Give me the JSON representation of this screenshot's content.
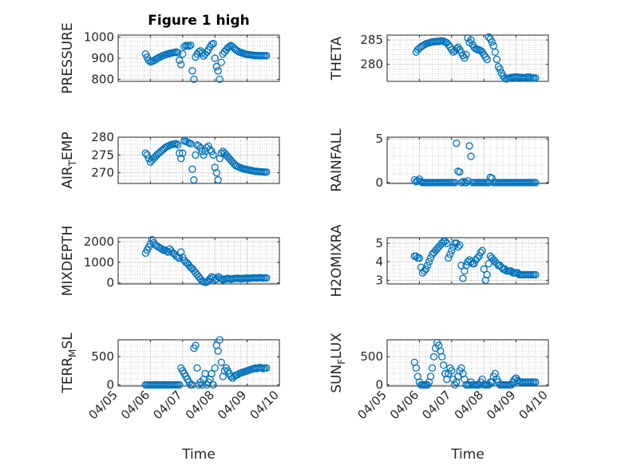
{
  "figure": {
    "title": "Figure 1 high"
  },
  "colors": {
    "marker": "#0072BD",
    "axes": "#262626",
    "grid": "#b0b0b0",
    "background": "#ffffff"
  },
  "x_axis": {
    "label": "Time",
    "ticks": [
      0,
      1,
      2,
      3,
      4,
      5
    ],
    "tick_labels": [
      "04/05",
      "04/06",
      "04/07",
      "04/08",
      "04/09",
      "04/10"
    ],
    "range": [
      0,
      5
    ]
  },
  "chart_data": [
    {
      "type": "scatter",
      "title": "Figure 1 high",
      "ylabel": "PRESSURE",
      "ylim": [
        790,
        1010
      ],
      "yticks": [
        800,
        900,
        1000
      ],
      "ytick_labels": [
        "800",
        "900",
        "1000"
      ],
      "grid": true,
      "minor_grid": true,
      "x": [
        0.85,
        0.9,
        0.95,
        1.0,
        1.05,
        1.1,
        1.15,
        1.2,
        1.25,
        1.3,
        1.35,
        1.4,
        1.45,
        1.5,
        1.55,
        1.6,
        1.65,
        1.7,
        1.75,
        1.8,
        1.85,
        1.9,
        1.95,
        2.0,
        2.05,
        2.1,
        2.15,
        2.2,
        2.25,
        2.3,
        2.35,
        2.4,
        2.45,
        2.5,
        2.55,
        2.6,
        2.65,
        2.7,
        2.75,
        2.8,
        2.85,
        2.9,
        2.95,
        3.0,
        3.05,
        3.1,
        3.15,
        3.2,
        3.25,
        3.3,
        3.35,
        3.4,
        3.45,
        3.5,
        3.55,
        3.6,
        3.65,
        3.7,
        3.75,
        3.8,
        3.85,
        3.9,
        3.95,
        4.0,
        4.05,
        4.1,
        4.15,
        4.2,
        4.25,
        4.3,
        4.35,
        4.4,
        4.45,
        4.5,
        4.55,
        4.6
      ],
      "y": [
        920,
        905,
        890,
        882,
        885,
        888,
        893,
        898,
        902,
        906,
        910,
        913,
        916,
        919,
        921,
        923,
        925,
        926,
        928,
        930,
        926,
        890,
        870,
        920,
        955,
        960,
        960,
        958,
        962,
        840,
        800,
        905,
        920,
        930,
        935,
        925,
        910,
        920,
        930,
        940,
        955,
        965,
        970,
        900,
        860,
        840,
        800,
        880,
        920,
        930,
        940,
        950,
        955,
        960,
        955,
        948,
        940,
        935,
        930,
        928,
        925,
        922,
        920,
        918,
        917,
        916,
        915,
        914,
        913,
        913,
        912,
        912,
        912,
        912,
        912,
        912
      ]
    },
    {
      "type": "scatter",
      "ylabel": "THETA",
      "ylim": [
        276.5,
        286
      ],
      "yticks": [
        280,
        285
      ],
      "ytick_labels": [
        "280",
        "285"
      ],
      "grid": true,
      "minor_grid": true,
      "x": [
        0.9,
        0.95,
        1.0,
        1.05,
        1.1,
        1.15,
        1.2,
        1.25,
        1.3,
        1.35,
        1.4,
        1.45,
        1.5,
        1.55,
        1.6,
        1.65,
        1.7,
        1.75,
        1.8,
        1.85,
        1.9,
        1.95,
        2.0,
        2.05,
        2.1,
        2.15,
        2.2,
        2.25,
        2.3,
        2.35,
        2.4,
        2.45,
        2.5,
        2.55,
        2.6,
        2.65,
        2.7,
        2.75,
        2.8,
        2.85,
        2.9,
        2.95,
        3.0,
        3.05,
        3.1,
        3.15,
        3.2,
        3.25,
        3.3,
        3.35,
        3.4,
        3.45,
        3.5,
        3.55,
        3.6,
        3.65,
        3.7,
        3.75,
        3.8,
        3.85,
        3.9,
        3.95,
        4.0,
        4.05,
        4.1,
        4.15,
        4.2,
        4.25,
        4.3,
        4.35,
        4.4,
        4.45,
        4.5,
        4.55,
        4.6
      ],
      "y": [
        282.5,
        283.0,
        283.3,
        283.6,
        283.8,
        284.0,
        284.2,
        284.3,
        284.4,
        284.5,
        284.6,
        284.6,
        284.7,
        284.7,
        284.7,
        284.8,
        284.8,
        284.7,
        284.6,
        284.4,
        284.0,
        283.6,
        283.0,
        282.5,
        282.8,
        283.2,
        283.5,
        283.0,
        282.4,
        281.8,
        281.3,
        282.0,
        285.4,
        284.5,
        285.0,
        284.0,
        283.5,
        283.2,
        283.0,
        283.0,
        282.8,
        282.5,
        282.0,
        281.5,
        281.0,
        285.6,
        285.2,
        284.6,
        283.8,
        282.5,
        281.0,
        279.5,
        279.0,
        278.2,
        277.6,
        277.2,
        277.0,
        277.1,
        277.2,
        277.3,
        277.3,
        277.4,
        277.4,
        277.4,
        277.3,
        277.3,
        277.3,
        277.2,
        277.3,
        277.4,
        277.4,
        277.3,
        277.2,
        277.2,
        277.2
      ]
    },
    {
      "type": "scatter",
      "ylabel": "AIR_TEMP",
      "ylim": [
        267,
        280
      ],
      "yticks": [
        270,
        275,
        280
      ],
      "ytick_labels": [
        "270",
        "275",
        "280"
      ],
      "grid": true,
      "minor_grid": true,
      "x": [
        0.85,
        0.9,
        0.95,
        1.0,
        1.05,
        1.1,
        1.15,
        1.2,
        1.25,
        1.3,
        1.35,
        1.4,
        1.45,
        1.5,
        1.55,
        1.6,
        1.65,
        1.7,
        1.75,
        1.8,
        1.85,
        1.9,
        1.95,
        2.0,
        2.05,
        2.1,
        2.15,
        2.2,
        2.25,
        2.3,
        2.35,
        2.4,
        2.45,
        2.5,
        2.55,
        2.6,
        2.65,
        2.7,
        2.75,
        2.8,
        2.85,
        2.9,
        2.95,
        3.0,
        3.05,
        3.1,
        3.15,
        3.2,
        3.25,
        3.3,
        3.35,
        3.4,
        3.45,
        3.5,
        3.55,
        3.6,
        3.65,
        3.7,
        3.75,
        3.8,
        3.85,
        3.9,
        3.95,
        4.0,
        4.05,
        4.1,
        4.15,
        4.2,
        4.25,
        4.3,
        4.35,
        4.4,
        4.45,
        4.5,
        4.55,
        4.6
      ],
      "y": [
        275.5,
        275.0,
        274.0,
        273.0,
        273.5,
        274.0,
        274.5,
        275.0,
        275.4,
        275.8,
        276.2,
        276.6,
        277.0,
        277.3,
        277.5,
        277.7,
        277.9,
        278.0,
        278.1,
        278.2,
        277.8,
        275.5,
        274.0,
        275.5,
        279.0,
        278.8,
        278.6,
        278.4,
        278.2,
        271.0,
        268.0,
        275.0,
        277.8,
        277.5,
        277.0,
        276.0,
        275.0,
        276.0,
        277.0,
        277.5,
        276.5,
        276.0,
        275.0,
        271.5,
        270.0,
        268.0,
        274.0,
        275.5,
        276.0,
        275.5,
        275.0,
        274.5,
        274.0,
        273.5,
        273.0,
        272.5,
        272.0,
        271.8,
        271.6,
        271.4,
        271.2,
        271.1,
        271.0,
        270.9,
        270.8,
        270.7,
        270.6,
        270.5,
        270.4,
        270.4,
        270.3,
        270.3,
        270.3,
        270.2,
        270.2,
        270.2
      ]
    },
    {
      "type": "scatter",
      "ylabel": "RAINFALL",
      "ylim": [
        -0.1,
        5.2
      ],
      "yticks": [
        0,
        5
      ],
      "ytick_labels": [
        "0",
        "5"
      ],
      "grid": true,
      "minor_grid": true,
      "x": [
        0.85,
        0.9,
        0.95,
        1.0,
        1.05,
        1.1,
        1.15,
        1.2,
        1.25,
        1.3,
        1.35,
        1.4,
        1.45,
        1.5,
        1.55,
        1.6,
        1.65,
        1.7,
        1.75,
        1.8,
        1.85,
        1.9,
        1.95,
        2.0,
        2.05,
        2.1,
        2.15,
        2.2,
        2.25,
        2.3,
        2.35,
        2.4,
        2.45,
        2.5,
        2.55,
        2.6,
        2.65,
        2.7,
        2.75,
        2.8,
        2.85,
        2.9,
        2.95,
        3.0,
        3.05,
        3.1,
        3.15,
        3.2,
        3.25,
        3.3,
        3.35,
        3.4,
        3.45,
        3.5,
        3.55,
        3.6,
        3.65,
        3.7,
        3.75,
        3.8,
        3.85,
        3.9,
        3.95,
        4.0,
        4.05,
        4.1,
        4.15,
        4.2,
        4.25,
        4.3,
        4.35,
        4.4,
        4.45,
        4.5,
        4.55,
        4.6
      ],
      "y": [
        0.3,
        0.1,
        0.2,
        0.4,
        0.1,
        0.0,
        0.0,
        0.0,
        0.0,
        0.0,
        0.0,
        0.0,
        0.0,
        0.0,
        0.0,
        0.0,
        0.0,
        0.0,
        0.0,
        0.0,
        0.0,
        0.0,
        0.0,
        0.0,
        0.0,
        0.0,
        4.5,
        1.3,
        1.2,
        0.0,
        0.1,
        0.0,
        0.0,
        0.2,
        4.2,
        3.0,
        0.0,
        0.0,
        0.0,
        0.0,
        0.0,
        0.0,
        0.0,
        0.0,
        0.0,
        0.0,
        0.0,
        0.6,
        0.5,
        0.0,
        0.0,
        0.0,
        0.0,
        0.0,
        0.0,
        0.0,
        0.0,
        0.0,
        0.0,
        0.0,
        0.0,
        0.0,
        0.0,
        0.0,
        0.0,
        0.0,
        0.0,
        0.0,
        0.0,
        0.0,
        0.0,
        0.0,
        0.0,
        0.0,
        0.0,
        0.0
      ]
    },
    {
      "type": "scatter",
      "ylabel": "MIXDEPTH",
      "ylim": [
        -50,
        2200
      ],
      "yticks": [
        0,
        1000,
        2000
      ],
      "ytick_labels": [
        "0",
        "1000",
        "2000"
      ],
      "grid": true,
      "minor_grid": true,
      "x": [
        0.85,
        0.9,
        0.95,
        1.0,
        1.05,
        1.1,
        1.15,
        1.2,
        1.25,
        1.3,
        1.35,
        1.4,
        1.45,
        1.5,
        1.55,
        1.6,
        1.65,
        1.7,
        1.75,
        1.8,
        1.85,
        1.9,
        1.95,
        2.0,
        2.05,
        2.1,
        2.15,
        2.2,
        2.25,
        2.3,
        2.35,
        2.4,
        2.45,
        2.5,
        2.55,
        2.6,
        2.65,
        2.7,
        2.75,
        2.8,
        2.85,
        2.9,
        2.95,
        3.0,
        3.05,
        3.1,
        3.15,
        3.2,
        3.25,
        3.3,
        3.35,
        3.4,
        3.45,
        3.5,
        3.55,
        3.6,
        3.65,
        3.7,
        3.75,
        3.8,
        3.85,
        3.9,
        3.95,
        4.0,
        4.05,
        4.1,
        4.15,
        4.2,
        4.25,
        4.3,
        4.35,
        4.4,
        4.45,
        4.5,
        4.55,
        4.6
      ],
      "y": [
        1450,
        1600,
        1750,
        1900,
        2100,
        1950,
        1850,
        1800,
        1750,
        1700,
        1650,
        1600,
        1600,
        1550,
        1500,
        1650,
        1550,
        1450,
        1400,
        1300,
        1250,
        1200,
        1500,
        1250,
        1100,
        1000,
        950,
        850,
        750,
        700,
        600,
        500,
        400,
        300,
        200,
        100,
        50,
        30,
        50,
        100,
        200,
        300,
        250,
        150,
        200,
        300,
        250,
        200,
        150,
        180,
        200,
        220,
        200,
        180,
        200,
        210,
        220,
        230,
        220,
        200,
        210,
        220,
        230,
        240,
        220,
        230,
        240,
        250,
        240,
        230,
        250,
        260,
        240,
        230,
        250,
        240
      ]
    },
    {
      "type": "scatter",
      "ylabel": "H2OMIXRA",
      "ylim": [
        2.8,
        5.3
      ],
      "yticks": [
        3,
        4,
        5
      ],
      "ytick_labels": [
        "3",
        "4",
        "5"
      ],
      "grid": true,
      "minor_grid": true,
      "x": [
        0.85,
        0.9,
        0.95,
        1.0,
        1.05,
        1.1,
        1.15,
        1.2,
        1.25,
        1.3,
        1.35,
        1.4,
        1.45,
        1.5,
        1.55,
        1.6,
        1.65,
        1.7,
        1.75,
        1.8,
        1.85,
        1.9,
        1.95,
        2.0,
        2.05,
        2.1,
        2.15,
        2.2,
        2.25,
        2.3,
        2.35,
        2.4,
        2.45,
        2.5,
        2.55,
        2.6,
        2.65,
        2.7,
        2.75,
        2.8,
        2.85,
        2.9,
        2.95,
        3.0,
        3.05,
        3.1,
        3.15,
        3.2,
        3.25,
        3.3,
        3.35,
        3.4,
        3.45,
        3.5,
        3.55,
        3.6,
        3.65,
        3.7,
        3.75,
        3.8,
        3.85,
        3.9,
        3.95,
        4.0,
        4.05,
        4.1,
        4.15,
        4.2,
        4.25,
        4.3,
        4.35,
        4.4,
        4.45,
        4.5,
        4.55,
        4.6
      ],
      "y": [
        4.3,
        4.3,
        4.2,
        4.2,
        3.7,
        3.4,
        3.5,
        3.6,
        3.8,
        4.0,
        4.2,
        4.4,
        4.5,
        4.6,
        4.7,
        4.8,
        4.9,
        5.0,
        5.1,
        5.1,
        5.0,
        4.2,
        4.4,
        4.6,
        4.8,
        5.0,
        5.0,
        4.8,
        4.9,
        3.8,
        3.1,
        3.5,
        3.8,
        4.0,
        4.1,
        4.0,
        3.9,
        3.9,
        4.1,
        4.2,
        4.3,
        4.5,
        4.6,
        3.6,
        3.0,
        3.3,
        3.9,
        4.3,
        4.2,
        4.1,
        4.0,
        3.9,
        3.8,
        3.8,
        3.7,
        3.6,
        3.6,
        3.5,
        3.5,
        3.5,
        3.5,
        3.4,
        3.4,
        3.4,
        3.4,
        3.3,
        3.3,
        3.3,
        3.3,
        3.3,
        3.3,
        3.3,
        3.3,
        3.3,
        3.3,
        3.3
      ]
    },
    {
      "type": "scatter",
      "ylabel": "TERR_MSL",
      "ylim": [
        -20,
        800
      ],
      "yticks": [
        0,
        500
      ],
      "ytick_labels": [
        "0",
        "500"
      ],
      "grid": true,
      "minor_grid": true,
      "x": [
        0.85,
        0.9,
        0.95,
        1.0,
        1.05,
        1.1,
        1.15,
        1.2,
        1.25,
        1.3,
        1.35,
        1.4,
        1.45,
        1.5,
        1.55,
        1.6,
        1.65,
        1.7,
        1.75,
        1.8,
        1.85,
        1.9,
        1.95,
        2.0,
        2.05,
        2.1,
        2.15,
        2.2,
        2.25,
        2.3,
        2.35,
        2.4,
        2.45,
        2.5,
        2.55,
        2.6,
        2.65,
        2.7,
        2.75,
        2.8,
        2.85,
        2.9,
        2.95,
        3.0,
        3.05,
        3.1,
        3.15,
        3.2,
        3.25,
        3.3,
        3.35,
        3.4,
        3.45,
        3.5,
        3.55,
        3.6,
        3.65,
        3.7,
        3.75,
        3.8,
        3.85,
        3.9,
        3.95,
        4.0,
        4.05,
        4.1,
        4.15,
        4.2,
        4.25,
        4.3,
        4.35,
        4.4,
        4.45,
        4.5,
        4.55,
        4.6
      ],
      "y": [
        0,
        0,
        0,
        0,
        0,
        0,
        0,
        0,
        0,
        0,
        0,
        0,
        0,
        0,
        0,
        0,
        0,
        0,
        0,
        0,
        0,
        0,
        300,
        250,
        200,
        150,
        100,
        50,
        0,
        0,
        650,
        700,
        300,
        0,
        50,
        0,
        100,
        200,
        0,
        50,
        100,
        200,
        0,
        300,
        700,
        600,
        800,
        400,
        150,
        250,
        300,
        250,
        200,
        150,
        120,
        150,
        170,
        180,
        200,
        210,
        220,
        230,
        240,
        250,
        260,
        270,
        280,
        290,
        300,
        290,
        300,
        310,
        300,
        290,
        300,
        300
      ]
    },
    {
      "type": "scatter",
      "ylabel": "SUN_FLUX",
      "ylim": [
        -20,
        800
      ],
      "yticks": [
        0,
        500
      ],
      "ytick_labels": [
        "0",
        "500"
      ],
      "grid": true,
      "minor_grid": true,
      "x": [
        0.85,
        0.9,
        0.95,
        1.0,
        1.05,
        1.1,
        1.15,
        1.2,
        1.25,
        1.3,
        1.35,
        1.4,
        1.45,
        1.5,
        1.55,
        1.6,
        1.65,
        1.7,
        1.75,
        1.8,
        1.85,
        1.9,
        1.95,
        2.0,
        2.05,
        2.1,
        2.15,
        2.2,
        2.25,
        2.3,
        2.35,
        2.4,
        2.45,
        2.5,
        2.55,
        2.6,
        2.65,
        2.7,
        2.75,
        2.8,
        2.85,
        2.9,
        2.95,
        3.0,
        3.05,
        3.1,
        3.15,
        3.2,
        3.25,
        3.3,
        3.35,
        3.4,
        3.45,
        3.5,
        3.55,
        3.6,
        3.65,
        3.7,
        3.75,
        3.8,
        3.85,
        3.9,
        3.95,
        4.0,
        4.05,
        4.1,
        4.15,
        4.2,
        4.25,
        4.3,
        4.35,
        4.4,
        4.45,
        4.5,
        4.55,
        4.6
      ],
      "y": [
        400,
        300,
        150,
        50,
        0,
        0,
        0,
        0,
        0,
        50,
        150,
        300,
        500,
        650,
        750,
        700,
        600,
        500,
        350,
        200,
        100,
        200,
        300,
        250,
        100,
        0,
        50,
        150,
        250,
        300,
        200,
        100,
        0,
        0,
        0,
        50,
        0,
        0,
        0,
        0,
        0,
        50,
        100,
        0,
        0,
        0,
        0,
        50,
        50,
        150,
        200,
        100,
        50,
        0,
        0,
        0,
        0,
        0,
        0,
        0,
        0,
        50,
        100,
        120,
        80,
        60,
        50,
        50,
        50,
        50,
        50,
        50,
        50,
        50,
        50,
        50
      ]
    }
  ]
}
